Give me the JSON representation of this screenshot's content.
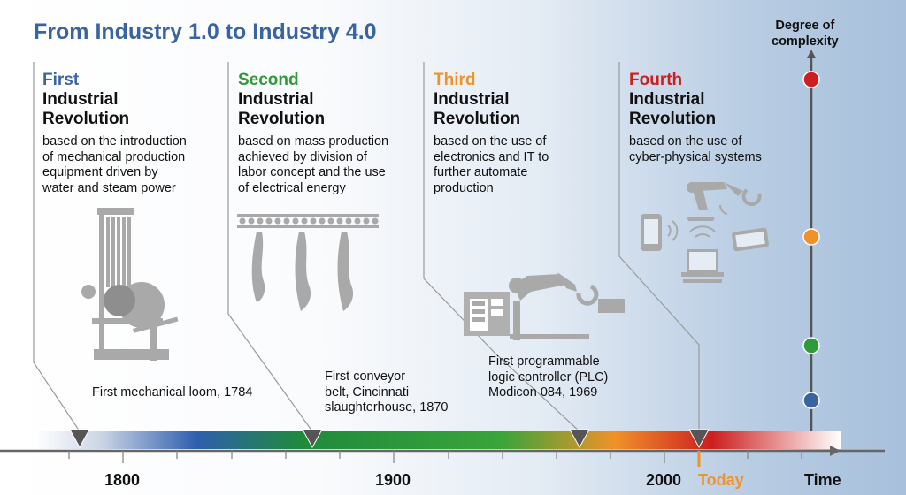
{
  "title": "From Industry 1.0 to Industry 4.0",
  "complexity_label": "Degree of\ncomplexity",
  "revolutions": [
    {
      "ordinal": "First",
      "name": "Industrial\nRevolution",
      "description": "based on the introduction\nof  mechanical production\nequipment driven by\nwater and steam power",
      "color": "#3a64a0",
      "milestone": "First mechanical loom, 1784"
    },
    {
      "ordinal": "Second",
      "name": "Industrial\nRevolution",
      "description": "based on mass production\nachieved by division of\nlabor concept and the use\nof electrical energy",
      "color": "#2e9a3a",
      "milestone": "First conveyor\nbelt, Cincinnati\nslaughterhouse, 1870"
    },
    {
      "ordinal": "Third",
      "name": "Industrial\nRevolution",
      "description": "based on the use of\nelectronics and IT to\nfurther automate\nproduction",
      "color": "#f0922a",
      "milestone": "First programmable\nlogic controller (PLC)\nModicon 084, 1969"
    },
    {
      "ordinal": "Fourth",
      "name": "Industrial\nRevolution",
      "description": "based on the use of\ncyber-physical systems",
      "color": "#cc1f1f",
      "milestone": ""
    }
  ],
  "timeline": {
    "labels": {
      "y1800": "1800",
      "y1900": "1900",
      "y2000": "2000",
      "today": "Today",
      "time": "Time"
    },
    "today_color": "#f0922a"
  },
  "complexity_dots": [
    "#cc1f1f",
    "#f0922a",
    "#2e9a3a",
    "#3a64a0"
  ]
}
